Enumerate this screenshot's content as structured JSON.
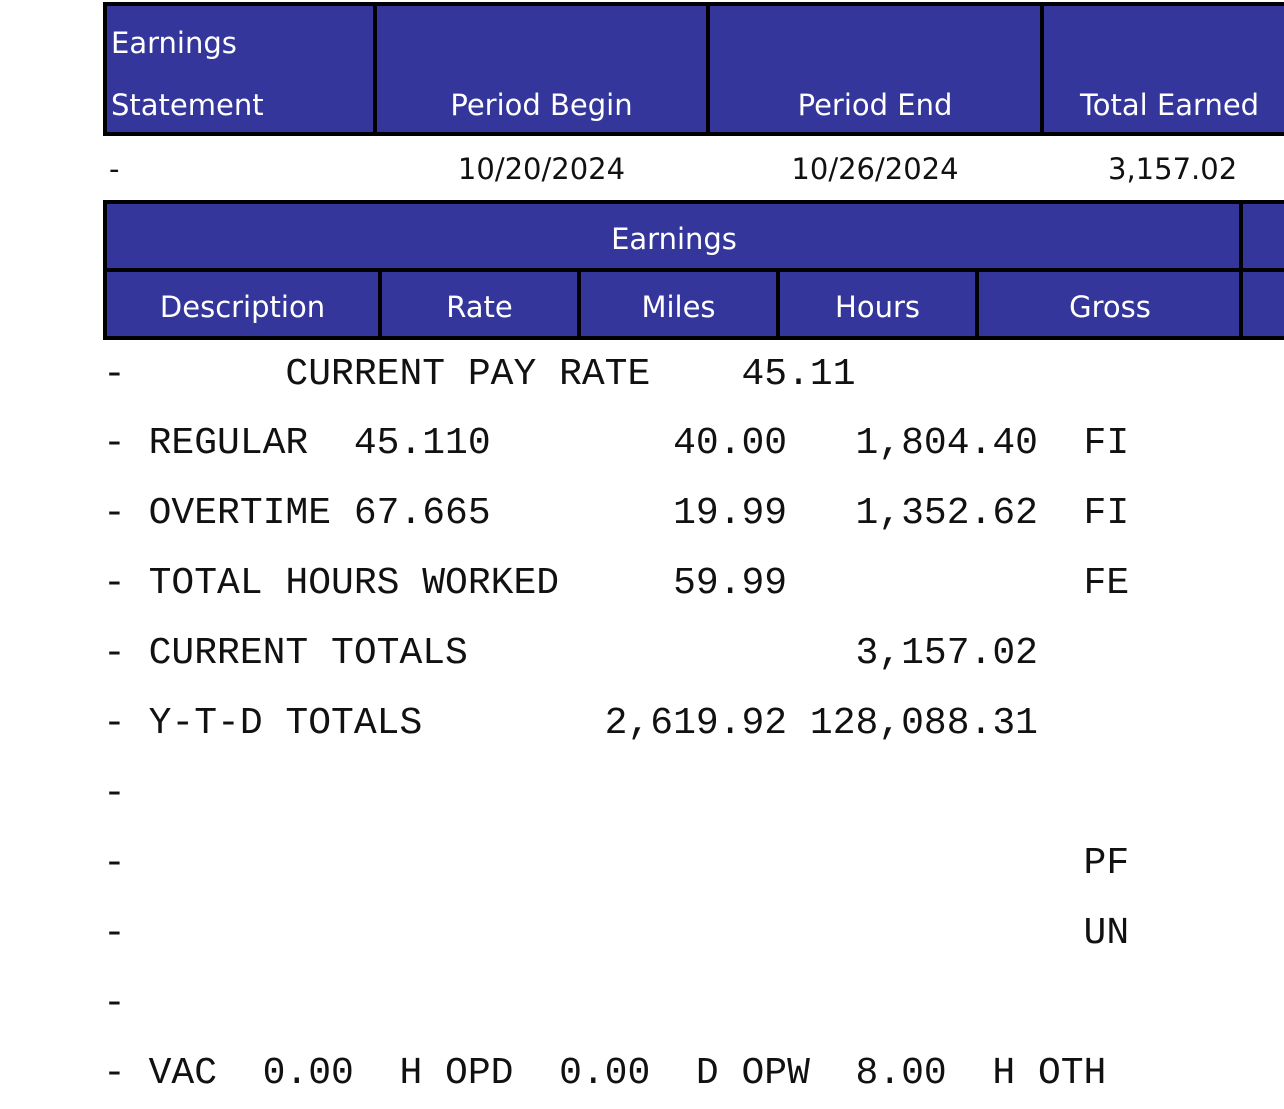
{
  "statement_header": {
    "col1_line1": "Earnings",
    "col1_line2": "Statement",
    "col2": "Period Begin",
    "col3": "Period End",
    "col4": "Total Earned"
  },
  "statement_row": {
    "col1": "-",
    "period_begin": "10/20/2024",
    "period_end": "10/26/2024",
    "total_earned": "3,157.02"
  },
  "earnings_header": {
    "title": "Earnings",
    "columns": [
      "Description",
      "Rate",
      "Miles",
      "Hours",
      "Gross"
    ]
  },
  "lines": [
    "-       CURRENT PAY RATE    45.11",
    "- REGULAR  45.110        40.00   1,804.40  FI",
    "- OVERTIME 67.665        19.99   1,352.62  FI",
    "- TOTAL HOURS WORKED     59.99             FE",
    "- CURRENT TOTALS                 3,157.02",
    "- Y-T-D TOTALS        2,619.92 128,088.31",
    "-",
    "-                                          PF",
    "-                                          UN",
    "-",
    "- VAC  0.00  H OPD  0.00  D OPW  8.00  H OTH"
  ]
}
